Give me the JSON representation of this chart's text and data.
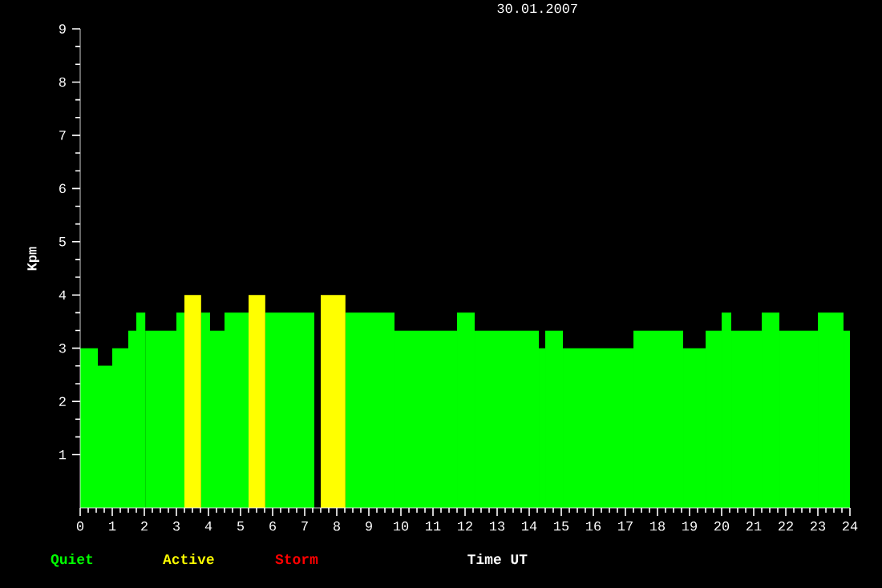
{
  "chart_data": {
    "type": "histogram",
    "title": "30.01.2007",
    "xlabel": "Time UT",
    "ylabel": "Kpm",
    "bins": [
      0,
      0.55,
      1,
      1.5,
      1.75,
      2.03,
      3,
      3.25,
      3.77,
      4.05,
      4.5,
      5.25,
      5.77,
      7.3,
      7.5,
      8.27,
      9.8,
      11.75,
      12.3,
      14.3,
      14.5,
      15.05,
      17.25,
      18.8,
      19.5,
      20,
      20.3,
      21.25,
      21.8,
      23,
      23.8,
      24
    ],
    "series": [
      {
        "name": "Quiet",
        "color": "#00ff00",
        "values": [
          3,
          2.67,
          3,
          3.33,
          3.67,
          3.33,
          3.67,
          null,
          3.67,
          3.33,
          3.67,
          null,
          3.67,
          null,
          null,
          3.67,
          3.33,
          3.67,
          3.33,
          3,
          3.33,
          3,
          3.33,
          3,
          3.33,
          3.67,
          3.33,
          3.67,
          3.33,
          3.67,
          3.33
        ]
      },
      {
        "name": "Active",
        "color": "#ffff00",
        "values": [
          null,
          null,
          null,
          null,
          null,
          null,
          null,
          4,
          null,
          null,
          null,
          4,
          null,
          null,
          4,
          null,
          null,
          null,
          null,
          null,
          null,
          null,
          null,
          null,
          null,
          null,
          null,
          null,
          null,
          null,
          null
        ]
      }
    ],
    "annotations": [
      "Storm"
    ],
    "xlim": [
      0,
      24
    ],
    "ylim": [
      0,
      9
    ],
    "xticks": [
      0,
      1,
      2,
      3,
      4,
      5,
      6,
      7,
      8,
      9,
      10,
      11,
      12,
      13,
      14,
      15,
      16,
      17,
      18,
      19,
      20,
      21,
      22,
      23,
      24
    ],
    "yticks": [
      1,
      2,
      3,
      4,
      5,
      6,
      7,
      8,
      9
    ],
    "legend": "bottom left"
  }
}
